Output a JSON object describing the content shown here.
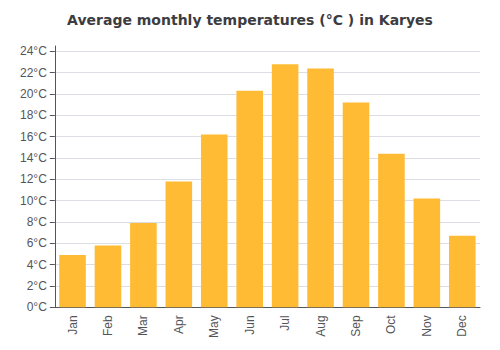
{
  "chart_data": {
    "type": "bar",
    "title": "Average monthly temperatures (°C ) in Karyes",
    "categories": [
      "Jan",
      "Feb",
      "Mar",
      "Apr",
      "May",
      "Jun",
      "Jul",
      "Aug",
      "Sep",
      "Oct",
      "Nov",
      "Dec"
    ],
    "values": [
      4.9,
      5.8,
      7.9,
      11.8,
      16.2,
      20.3,
      22.8,
      22.4,
      19.2,
      14.4,
      10.2,
      6.7
    ],
    "color": "#FFBB33",
    "ylim": [
      0,
      24.5
    ],
    "yticks": [
      {
        "value": 0,
        "label": "0°C"
      },
      {
        "value": 2,
        "label": "2°C"
      },
      {
        "value": 4,
        "label": "4°C"
      },
      {
        "value": 6,
        "label": "6°C"
      },
      {
        "value": 8,
        "label": "8°C"
      },
      {
        "value": 10,
        "label": "10°C"
      },
      {
        "value": 12,
        "label": "12°C"
      },
      {
        "value": 14,
        "label": "14°C"
      },
      {
        "value": 16,
        "label": "16°C"
      },
      {
        "value": 18,
        "label": "18°C"
      },
      {
        "value": 20,
        "label": "20°C"
      },
      {
        "value": 22,
        "label": "22°C"
      },
      {
        "value": 24,
        "label": "24°C"
      }
    ],
    "grid": true
  }
}
